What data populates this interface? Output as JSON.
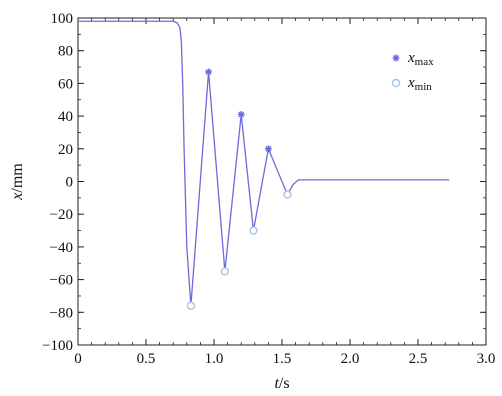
{
  "chart_data": {
    "type": "line",
    "xlabel": {
      "var": "t",
      "unit": "/s"
    },
    "ylabel": {
      "var": "x",
      "unit": "/mm"
    },
    "xlim": [
      0,
      3.0
    ],
    "ylim": [
      -100,
      100
    ],
    "xticks": [
      0,
      0.5,
      1.0,
      1.5,
      2.0,
      2.5,
      3.0
    ],
    "xtick_labels": [
      "0",
      "0.5",
      "1.0",
      "1.5",
      "2.0",
      "2.5",
      "3.0"
    ],
    "yticks": [
      -100,
      -80,
      -60,
      -40,
      -20,
      0,
      20,
      40,
      60,
      80,
      100
    ],
    "ytick_labels": [
      "−100",
      "−80",
      "−60",
      "−40",
      "−20",
      "0",
      "20",
      "40",
      "60",
      "80",
      "100"
    ],
    "grid": false,
    "legend_position": "top-right",
    "colors": {
      "line": "#6b6bdc",
      "xmax_marker": "#6b6bdc",
      "xmin_marker": "#a9c0e8"
    },
    "series": [
      {
        "x": [
          0,
          0.7,
          0.73,
          0.75,
          0.76,
          0.77,
          0.78,
          0.8,
          0.83,
          0.96,
          1.08,
          1.2,
          1.29,
          1.4,
          1.54,
          1.58,
          1.62,
          2.0,
          2.5,
          2.73
        ],
        "y": [
          98,
          98,
          97,
          94,
          85,
          60,
          20,
          -40,
          -76,
          67,
          -55,
          41,
          -30,
          20,
          -8,
          -2,
          1,
          1,
          1,
          1
        ]
      }
    ],
    "markers": [
      {
        "name": "xmax",
        "symbol": "star",
        "x": [
          0.96,
          1.2,
          1.4
        ],
        "y": [
          67,
          41,
          20
        ]
      },
      {
        "name": "xmin",
        "symbol": "circle",
        "x": [
          0.83,
          1.08,
          1.29,
          1.54
        ],
        "y": [
          -76,
          -55,
          -30,
          -8
        ]
      }
    ],
    "legend": [
      {
        "key": "xmax",
        "var": "x",
        "sub": "max"
      },
      {
        "key": "xmin",
        "var": "x",
        "sub": "min"
      }
    ]
  }
}
